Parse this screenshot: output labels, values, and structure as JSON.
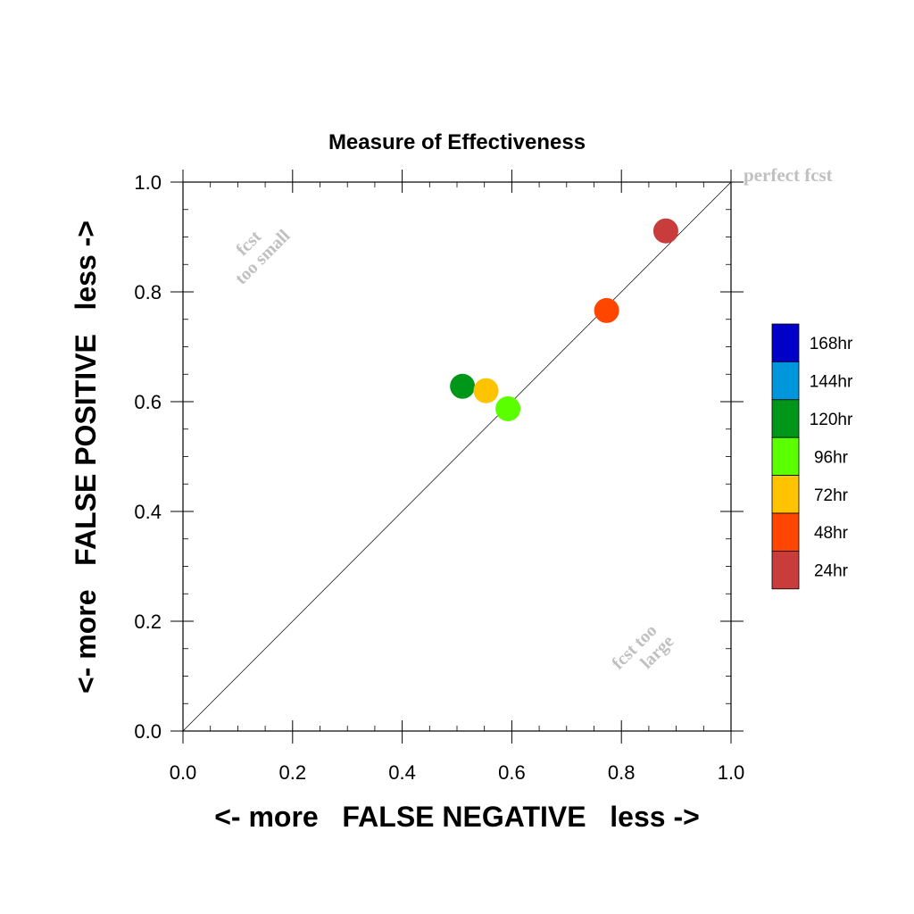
{
  "chart_data": {
    "type": "scatter",
    "title": "Measure of Effectiveness",
    "xlabel": "<- more   FALSE NEGATIVE   less ->",
    "ylabel": "<- more   FALSE POSITIVE   less ->",
    "xlim": [
      0.0,
      1.0
    ],
    "ylim": [
      0.0,
      1.0
    ],
    "x_ticks": [
      "0.0",
      "0.2",
      "0.4",
      "0.6",
      "0.8",
      "1.0"
    ],
    "y_ticks": [
      "0.0",
      "0.2",
      "0.4",
      "0.6",
      "0.8",
      "1.0"
    ],
    "grid": false,
    "reference_line": "y = x",
    "annotations": {
      "perfect": "perfect fcst",
      "too_small_line1": "fcst",
      "too_small_line2": "too small",
      "too_large_line1": "fcst too",
      "too_large_line2": "large"
    },
    "legend_position": "right",
    "legend": [
      {
        "label": "168hr",
        "color": "#0000c8"
      },
      {
        "label": "144hr",
        "color": "#0096dc"
      },
      {
        "label": "120hr",
        "color": "#009619"
      },
      {
        "label": "96hr",
        "color": "#5aff00"
      },
      {
        "label": "72hr",
        "color": "#ffc300"
      },
      {
        "label": "48hr",
        "color": "#ff4600"
      },
      {
        "label": "24hr",
        "color": "#c83c3c"
      }
    ],
    "points": [
      {
        "series": "24hr",
        "x": 0.881,
        "y": 0.911,
        "color": "#c83c3c"
      },
      {
        "series": "48hr",
        "x": 0.773,
        "y": 0.766,
        "color": "#ff4600"
      },
      {
        "series": "120hr",
        "x": 0.51,
        "y": 0.628,
        "color": "#009619"
      },
      {
        "series": "72hr",
        "x": 0.553,
        "y": 0.62,
        "color": "#ffc300"
      },
      {
        "series": "96hr",
        "x": 0.593,
        "y": 0.587,
        "color": "#5aff00"
      }
    ]
  }
}
